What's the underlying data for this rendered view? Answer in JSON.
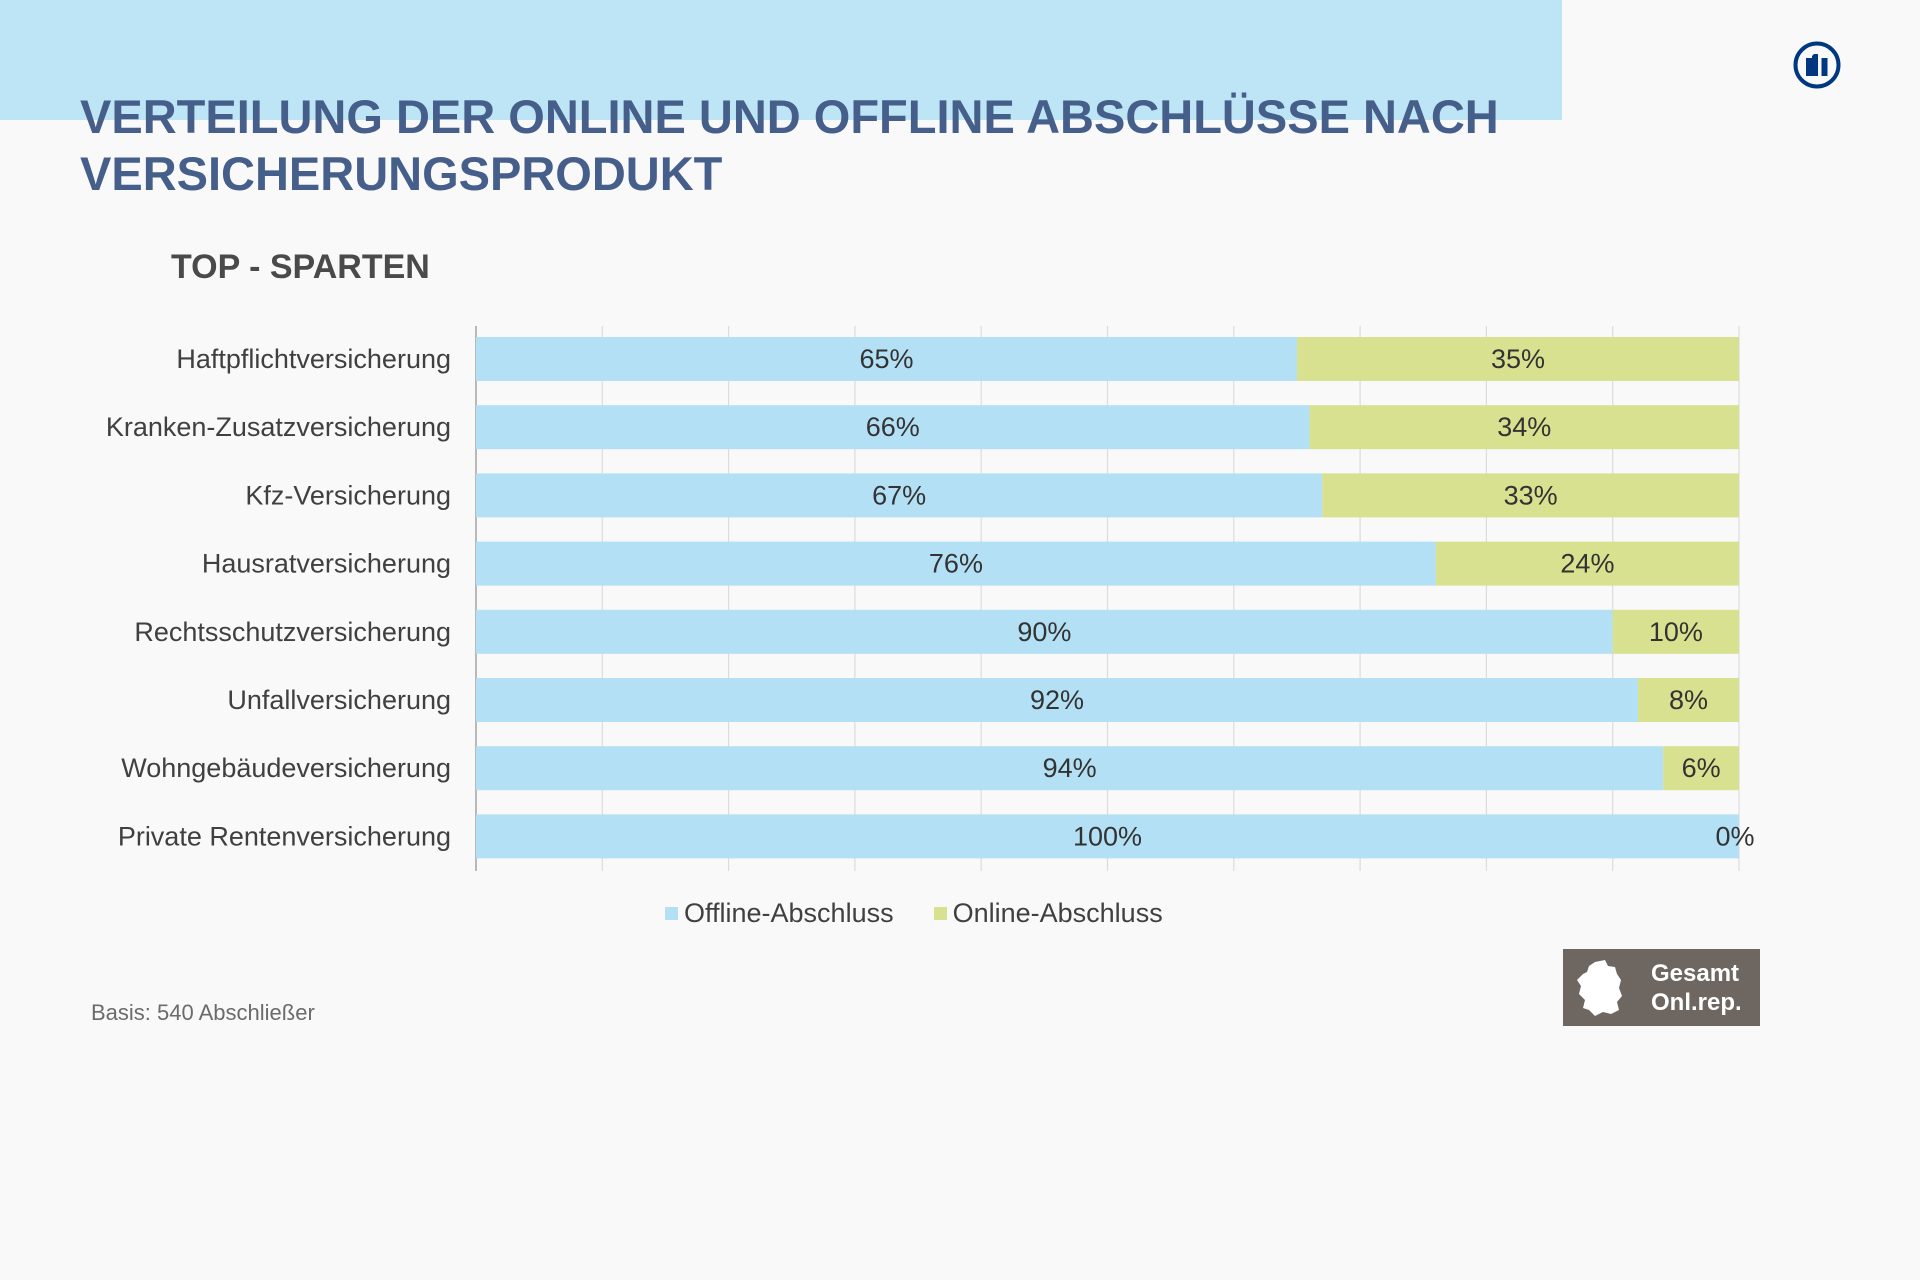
{
  "header": {
    "title": "VERTEILUNG DER ONLINE UND OFFLINE ABSCHLÜSSE NACH\nVERSICHERUNGSPRODUKT",
    "logo_icon": "allianz-eagle-logo-icon"
  },
  "subtitle": "TOP - SPARTEN",
  "footer": {
    "basis": "Basis: 540 Abschließer",
    "badge": {
      "icon": "germany-map-icon",
      "text": "Gesamt\nOnl.rep."
    }
  },
  "colors": {
    "banner": "#bee5f5",
    "title": "#455f8a",
    "offline": "#b3e0f5",
    "online": "#d7e18f",
    "badge": "#6e6661"
  },
  "chart_data": {
    "type": "bar",
    "orientation": "horizontal",
    "stacked": true,
    "title": "TOP - SPARTEN",
    "xlabel": "",
    "ylabel": "",
    "xlim": [
      0,
      100
    ],
    "grid": true,
    "grid_step": 10,
    "legend_position": "bottom",
    "categories": [
      "Haftpflichtversicherung",
      "Kranken-Zusatzversicherung",
      "Kfz-Versicherung",
      "Hausratversicherung",
      "Rechtsschutzversicherung",
      "Unfallversicherung",
      "Wohngebäudeversicherung",
      "Private Rentenversicherung"
    ],
    "series": [
      {
        "name": "Offline-Abschluss",
        "color": "#b3e0f5",
        "values": [
          65,
          66,
          67,
          76,
          90,
          92,
          94,
          100
        ]
      },
      {
        "name": "Online-Abschluss",
        "color": "#d7e18f",
        "values": [
          35,
          34,
          33,
          24,
          10,
          8,
          6,
          0
        ]
      }
    ],
    "value_suffix": "%"
  }
}
